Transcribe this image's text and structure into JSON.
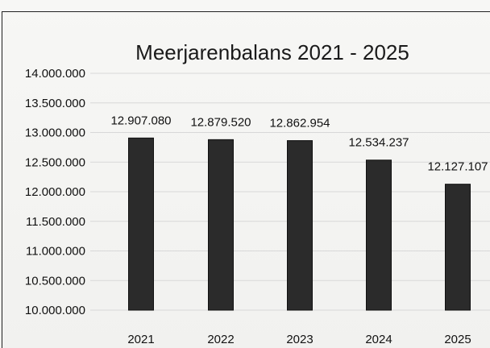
{
  "chart_data": {
    "type": "bar",
    "title": "Meerjarenbalans 2021 - 2025",
    "categories": [
      "2021",
      "2022",
      "2023",
      "2024",
      "2025"
    ],
    "values": [
      12907080,
      12879520,
      12862954,
      12534237,
      12127107
    ],
    "value_labels": [
      "12.907.080",
      "12.879.520",
      "12.862.954",
      "12.534.237",
      "12.127.107"
    ],
    "ylim": [
      10000000,
      14000000
    ],
    "y_ticks": [
      10000000,
      10500000,
      11000000,
      11500000,
      12000000,
      12500000,
      13000000,
      13500000,
      14000000
    ],
    "y_tick_labels": [
      "10.000.000",
      "10.500.000",
      "11.000.000",
      "11.500.000",
      "12.000.000",
      "12.500.000",
      "13.000.000",
      "13.500.000",
      "14.000.000"
    ],
    "grid": true,
    "legend": "none",
    "bar_color": "#2b2b2b"
  }
}
